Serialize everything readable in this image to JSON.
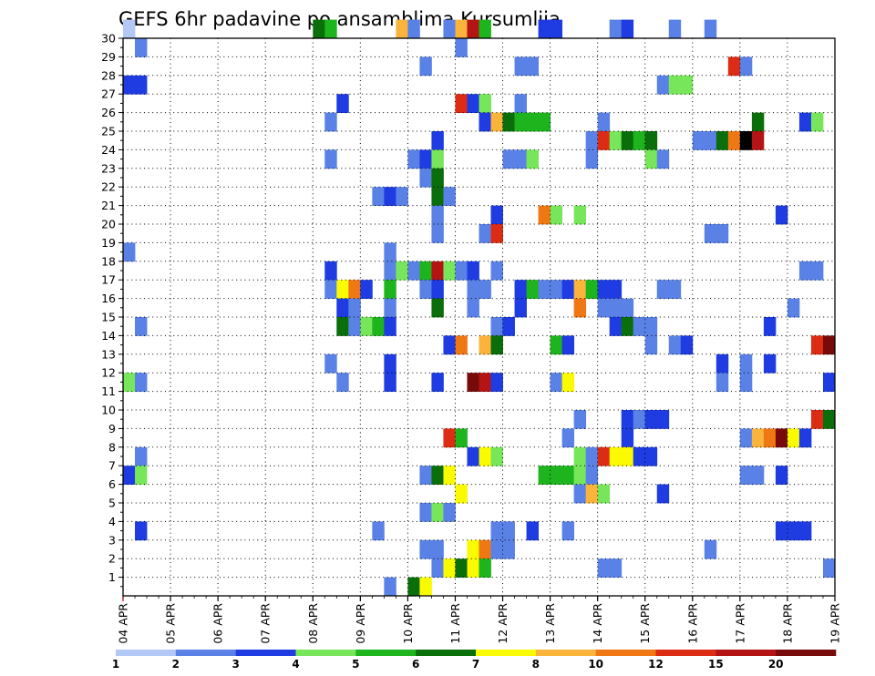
{
  "chart_data": {
    "type": "heatmap",
    "title": "GEFS 6hr padavine po ansamblima Kursumlija",
    "xlabel": "",
    "ylabel": "",
    "x_ticks": [
      "04 APR",
      "05 APR",
      "06 APR",
      "07 APR",
      "08 APR",
      "09 APR",
      "10 APR",
      "11 APR",
      "12 APR",
      "13 APR",
      "14 APR",
      "15 APR",
      "16 APR",
      "17 APR",
      "18 APR",
      "19 APR"
    ],
    "x_range": [
      0,
      60
    ],
    "y_range": [
      0,
      30
    ],
    "y_ticks": [
      1,
      2,
      3,
      4,
      5,
      6,
      7,
      8,
      9,
      10,
      11,
      12,
      13,
      14,
      15,
      16,
      17,
      18,
      19,
      20,
      21,
      22,
      23,
      24,
      25,
      26,
      27,
      28,
      29,
      30
    ],
    "grid": true,
    "legend": {
      "placement": "bottom",
      "levels": [
        "1",
        "2",
        "3",
        "4",
        "5",
        "6",
        "7",
        "8",
        "10",
        "12",
        "15",
        "20"
      ],
      "colors": [
        "#b4c8f5",
        "#5a82e6",
        "#1e3ce1",
        "#78e65a",
        "#1eb41e",
        "#0a6e0a",
        "#fafa00",
        "#fab43c",
        "#f07814",
        "#dc2d14",
        "#b41414",
        "#780a0a"
      ]
    },
    "cells": [
      [
        0,
        30,
        0
      ],
      [
        16,
        30,
        5
      ],
      [
        17,
        30,
        4
      ],
      [
        23,
        30,
        7
      ],
      [
        24,
        30,
        1
      ],
      [
        27,
        30,
        1
      ],
      [
        28,
        30,
        7
      ],
      [
        29,
        30,
        10
      ],
      [
        30,
        30,
        4
      ],
      [
        35,
        30,
        2
      ],
      [
        36,
        30,
        2
      ],
      [
        41,
        30,
        1
      ],
      [
        42,
        30,
        2
      ],
      [
        46,
        30,
        1
      ],
      [
        49,
        30,
        1
      ],
      [
        1,
        29,
        1
      ],
      [
        28,
        29,
        1
      ],
      [
        25,
        28,
        1
      ],
      [
        33,
        28,
        1
      ],
      [
        34,
        28,
        1
      ],
      [
        51,
        28,
        9
      ],
      [
        52,
        28,
        1
      ],
      [
        0,
        27,
        2
      ],
      [
        1,
        27,
        2
      ],
      [
        45,
        27,
        1
      ],
      [
        46,
        27,
        3
      ],
      [
        47,
        27,
        3
      ],
      [
        18,
        26,
        2
      ],
      [
        28,
        26,
        9
      ],
      [
        29,
        26,
        2
      ],
      [
        30,
        26,
        3
      ],
      [
        33,
        26,
        1
      ],
      [
        17,
        25,
        1
      ],
      [
        30,
        25,
        2
      ],
      [
        31,
        25,
        7
      ],
      [
        32,
        25,
        5
      ],
      [
        33,
        25,
        4
      ],
      [
        34,
        25,
        4
      ],
      [
        35,
        25,
        4
      ],
      [
        40,
        25,
        1
      ],
      [
        53,
        25,
        5
      ],
      [
        57,
        25,
        2
      ],
      [
        58,
        25,
        3
      ],
      [
        26,
        24,
        2
      ],
      [
        39,
        24,
        1
      ],
      [
        40,
        24,
        9
      ],
      [
        41,
        24,
        3
      ],
      [
        42,
        24,
        5
      ],
      [
        43,
        24,
        4
      ],
      [
        44,
        24,
        5
      ],
      [
        48,
        24,
        1
      ],
      [
        49,
        24,
        1
      ],
      [
        50,
        24,
        5
      ],
      [
        51,
        24,
        8
      ],
      [
        52,
        24,
        12
      ],
      [
        53,
        24,
        10
      ],
      [
        17,
        23,
        1
      ],
      [
        24,
        23,
        1
      ],
      [
        25,
        23,
        2
      ],
      [
        26,
        23,
        3
      ],
      [
        32,
        23,
        1
      ],
      [
        33,
        23,
        1
      ],
      [
        34,
        23,
        3
      ],
      [
        39,
        23,
        1
      ],
      [
        44,
        23,
        3
      ],
      [
        45,
        23,
        1
      ],
      [
        25,
        22,
        1
      ],
      [
        26,
        22,
        5
      ],
      [
        26,
        21,
        5
      ],
      [
        27,
        21,
        1
      ],
      [
        21,
        21,
        1
      ],
      [
        22,
        21,
        2
      ],
      [
        23,
        21,
        1
      ],
      [
        26,
        20,
        1
      ],
      [
        31,
        20,
        2
      ],
      [
        35,
        20,
        8
      ],
      [
        36,
        20,
        3
      ],
      [
        38,
        20,
        3
      ],
      [
        55,
        20,
        2
      ],
      [
        26,
        19,
        1
      ],
      [
        30,
        19,
        1
      ],
      [
        31,
        19,
        9
      ],
      [
        49,
        19,
        1
      ],
      [
        50,
        19,
        1
      ],
      [
        0,
        18,
        1
      ],
      [
        22,
        18,
        1
      ],
      [
        17,
        17,
        2
      ],
      [
        22,
        17,
        1
      ],
      [
        23,
        17,
        3
      ],
      [
        24,
        17,
        1
      ],
      [
        25,
        17,
        4
      ],
      [
        26,
        17,
        10
      ],
      [
        27,
        17,
        3
      ],
      [
        28,
        17,
        1
      ],
      [
        29,
        17,
        2
      ],
      [
        31,
        17,
        1
      ],
      [
        57,
        17,
        1
      ],
      [
        58,
        17,
        1
      ],
      [
        17,
        16,
        1
      ],
      [
        18,
        16,
        6
      ],
      [
        19,
        16,
        8
      ],
      [
        20,
        16,
        2
      ],
      [
        22,
        16,
        4
      ],
      [
        25,
        16,
        1
      ],
      [
        26,
        16,
        2
      ],
      [
        29,
        16,
        1
      ],
      [
        30,
        16,
        1
      ],
      [
        33,
        16,
        2
      ],
      [
        34,
        16,
        4
      ],
      [
        35,
        16,
        1
      ],
      [
        36,
        16,
        1
      ],
      [
        37,
        16,
        2
      ],
      [
        38,
        16,
        7
      ],
      [
        39,
        16,
        4
      ],
      [
        40,
        16,
        2
      ],
      [
        41,
        16,
        2
      ],
      [
        45,
        16,
        1
      ],
      [
        46,
        16,
        1
      ],
      [
        18,
        15,
        2
      ],
      [
        19,
        15,
        1
      ],
      [
        22,
        15,
        1
      ],
      [
        26,
        15,
        5
      ],
      [
        29,
        15,
        1
      ],
      [
        33,
        15,
        2
      ],
      [
        38,
        15,
        8
      ],
      [
        40,
        15,
        1
      ],
      [
        41,
        15,
        1
      ],
      [
        42,
        15,
        1
      ],
      [
        56,
        15,
        1
      ],
      [
        1,
        14,
        1
      ],
      [
        18,
        14,
        5
      ],
      [
        19,
        14,
        1
      ],
      [
        20,
        14,
        3
      ],
      [
        21,
        14,
        4
      ],
      [
        22,
        14,
        2
      ],
      [
        31,
        14,
        1
      ],
      [
        32,
        14,
        2
      ],
      [
        41,
        14,
        2
      ],
      [
        42,
        14,
        5
      ],
      [
        43,
        14,
        1
      ],
      [
        44,
        14,
        1
      ],
      [
        54,
        14,
        2
      ],
      [
        27,
        13,
        2
      ],
      [
        28,
        13,
        8
      ],
      [
        30,
        13,
        7
      ],
      [
        31,
        13,
        5
      ],
      [
        36,
        13,
        4
      ],
      [
        37,
        13,
        2
      ],
      [
        44,
        13,
        1
      ],
      [
        46,
        13,
        1
      ],
      [
        47,
        13,
        2
      ],
      [
        58,
        13,
        9
      ],
      [
        59,
        13,
        11
      ],
      [
        17,
        12,
        1
      ],
      [
        22,
        12,
        2
      ],
      [
        50,
        12,
        2
      ],
      [
        52,
        12,
        1
      ],
      [
        54,
        12,
        2
      ],
      [
        0,
        11,
        3
      ],
      [
        1,
        11,
        1
      ],
      [
        18,
        11,
        1
      ],
      [
        22,
        11,
        2
      ],
      [
        26,
        11,
        2
      ],
      [
        29,
        11,
        11
      ],
      [
        30,
        11,
        10
      ],
      [
        31,
        11,
        2
      ],
      [
        36,
        11,
        1
      ],
      [
        37,
        11,
        6
      ],
      [
        50,
        11,
        1
      ],
      [
        52,
        11,
        1
      ],
      [
        59,
        11,
        2
      ],
      [
        38,
        9,
        1
      ],
      [
        42,
        9,
        2
      ],
      [
        43,
        9,
        1
      ],
      [
        44,
        9,
        2
      ],
      [
        45,
        9,
        2
      ],
      [
        58,
        9,
        9
      ],
      [
        59,
        9,
        5
      ],
      [
        27,
        8,
        9
      ],
      [
        28,
        8,
        4
      ],
      [
        37,
        8,
        1
      ],
      [
        42,
        8,
        2
      ],
      [
        52,
        8,
        1
      ],
      [
        53,
        8,
        7
      ],
      [
        54,
        8,
        8
      ],
      [
        55,
        8,
        11
      ],
      [
        56,
        8,
        6
      ],
      [
        57,
        8,
        2
      ],
      [
        1,
        7,
        1
      ],
      [
        29,
        7,
        2
      ],
      [
        30,
        7,
        6
      ],
      [
        31,
        7,
        3
      ],
      [
        38,
        7,
        3
      ],
      [
        39,
        7,
        1
      ],
      [
        40,
        7,
        9
      ],
      [
        41,
        7,
        6
      ],
      [
        42,
        7,
        6
      ],
      [
        43,
        7,
        2
      ],
      [
        44,
        7,
        2
      ],
      [
        0,
        6,
        2
      ],
      [
        1,
        6,
        3
      ],
      [
        25,
        6,
        1
      ],
      [
        26,
        6,
        5
      ],
      [
        27,
        6,
        6
      ],
      [
        35,
        6,
        4
      ],
      [
        36,
        6,
        4
      ],
      [
        37,
        6,
        4
      ],
      [
        38,
        6,
        3
      ],
      [
        39,
        6,
        1
      ],
      [
        52,
        6,
        1
      ],
      [
        53,
        6,
        1
      ],
      [
        55,
        6,
        2
      ],
      [
        28,
        5,
        6
      ],
      [
        38,
        5,
        1
      ],
      [
        39,
        5,
        7
      ],
      [
        40,
        5,
        3
      ],
      [
        45,
        5,
        2
      ],
      [
        25,
        4,
        1
      ],
      [
        26,
        4,
        3
      ],
      [
        27,
        4,
        1
      ],
      [
        1,
        3,
        2
      ],
      [
        21,
        3,
        1
      ],
      [
        31,
        3,
        1
      ],
      [
        32,
        3,
        1
      ],
      [
        34,
        3,
        2
      ],
      [
        37,
        3,
        1
      ],
      [
        55,
        3,
        2
      ],
      [
        56,
        3,
        2
      ],
      [
        57,
        3,
        2
      ],
      [
        25,
        2,
        1
      ],
      [
        26,
        2,
        1
      ],
      [
        29,
        2,
        6
      ],
      [
        30,
        2,
        8
      ],
      [
        31,
        2,
        1
      ],
      [
        32,
        2,
        1
      ],
      [
        49,
        2,
        1
      ],
      [
        26,
        1,
        1
      ],
      [
        27,
        1,
        6
      ],
      [
        28,
        1,
        5
      ],
      [
        29,
        1,
        6
      ],
      [
        30,
        1,
        4
      ],
      [
        40,
        1,
        1
      ],
      [
        41,
        1,
        1
      ],
      [
        59,
        1,
        1
      ],
      [
        22,
        0,
        1
      ],
      [
        24,
        0,
        5
      ],
      [
        25,
        0,
        6
      ]
    ]
  }
}
